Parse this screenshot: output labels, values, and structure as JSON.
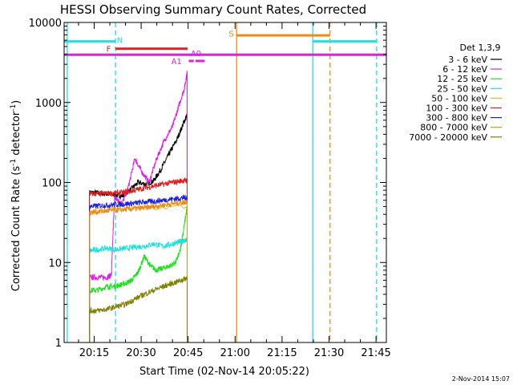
{
  "chart_data": {
    "type": "line",
    "title": "HESSI Observing Summary Count Rates, Corrected",
    "xlabel": "Start Time (02-Nov-14 20:05:22)",
    "ylabel_main": "Corrected Count Rate (s",
    "ylabel_sup1": "-1",
    "ylabel_mid": " detector",
    "ylabel_sup2": "-1",
    "ylabel_end": ")",
    "x_unit": "minutes of day (UT)",
    "xlim": [
      1205.4,
      1308.3
    ],
    "ylim": [
      1,
      10000
    ],
    "yscale": "log",
    "x_ticks": [
      {
        "v": 1215,
        "label": "20:15"
      },
      {
        "v": 1230,
        "label": "20:30"
      },
      {
        "v": 1245,
        "label": "20:45"
      },
      {
        "v": 1260,
        "label": "21:00"
      },
      {
        "v": 1275,
        "label": "21:15"
      },
      {
        "v": 1290,
        "label": "21:30"
      },
      {
        "v": 1305,
        "label": "21:45"
      }
    ],
    "y_ticks": [
      {
        "v": 1,
        "label": "1"
      },
      {
        "v": 10,
        "label": "10"
      },
      {
        "v": 100,
        "label": "100"
      },
      {
        "v": 1000,
        "label": "1000"
      },
      {
        "v": 10000,
        "label": "10000"
      }
    ],
    "legend_title": "Det 1,3,9",
    "legend_position": "right",
    "series": [
      {
        "name": "3 - 6 keV",
        "color": "#000000",
        "x": [
          1213.5,
          1216,
          1219,
          1221.5,
          1224,
          1226.5,
          1229,
          1231.5,
          1234,
          1236.5,
          1239,
          1241.5,
          1243.5,
          1244.7
        ],
        "y": [
          75,
          74,
          72,
          70,
          68,
          80,
          100,
          95,
          105,
          150,
          230,
          350,
          550,
          700
        ]
      },
      {
        "name": "6 - 12 keV",
        "color": "#e020e0",
        "x": [
          1213.5,
          1216,
          1219,
          1220.5,
          1221.5,
          1222.5,
          1224,
          1226,
          1228,
          1230,
          1232.5,
          1235,
          1237.5,
          1240,
          1242,
          1243.8,
          1244.7
        ],
        "y": [
          6.5,
          6.5,
          6.5,
          7,
          65,
          60,
          55,
          90,
          200,
          140,
          100,
          200,
          340,
          500,
          900,
          1500,
          2400
        ]
      },
      {
        "name": "12 - 25 keV",
        "color": "#20e020",
        "x": [
          1213.5,
          1216,
          1219,
          1221,
          1223,
          1225,
          1227,
          1229,
          1231,
          1233,
          1235,
          1237,
          1239,
          1241,
          1242.5,
          1243.5,
          1244.7
        ],
        "y": [
          4.5,
          4.5,
          5,
          5,
          5.2,
          5.5,
          6,
          7.5,
          12,
          9,
          8,
          8.5,
          9,
          10,
          14,
          25,
          50
        ]
      },
      {
        "name": "25 - 50 keV",
        "color": "#20e0e0",
        "x": [
          1213.5,
          1216,
          1219,
          1222,
          1225,
          1228,
          1231,
          1234,
          1237,
          1240,
          1242,
          1243.5,
          1244.7
        ],
        "y": [
          14,
          14.5,
          15,
          14.5,
          15,
          15.5,
          16,
          17,
          16,
          17,
          18,
          18.5,
          19
        ]
      },
      {
        "name": "50 - 100 keV",
        "color": "#e0c020",
        "x": [
          1213.5,
          1244.7
        ],
        "y": [
          45,
          50
        ]
      },
      {
        "name": "100 - 300 keV",
        "color": "#e02020",
        "x": [
          1213.5,
          1216,
          1219,
          1222,
          1225,
          1228,
          1231,
          1234,
          1237,
          1240,
          1243,
          1244.7
        ],
        "y": [
          72,
          72,
          73,
          74,
          75,
          80,
          85,
          90,
          95,
          100,
          105,
          106
        ]
      },
      {
        "name": "300 - 800 keV",
        "color": "#2020e0",
        "x": [
          1213.5,
          1216,
          1219,
          1222,
          1225,
          1228,
          1231,
          1234,
          1237,
          1240,
          1243,
          1244.7
        ],
        "y": [
          50,
          51,
          52,
          53,
          54,
          55,
          57,
          58,
          60,
          62,
          64,
          65
        ]
      },
      {
        "name": "800 - 7000 keV",
        "color": "#f08a10",
        "x": [
          1213.5,
          1216,
          1219,
          1222,
          1225,
          1228,
          1231,
          1234,
          1237,
          1240,
          1243,
          1244.7
        ],
        "y": [
          42,
          43,
          44,
          45,
          46,
          47,
          48,
          50,
          52,
          54,
          56,
          58
        ]
      },
      {
        "name": "7000 - 20000 keV",
        "color": "#808000",
        "x": [
          1213.5,
          1216,
          1219,
          1222,
          1225,
          1228,
          1231,
          1234,
          1237,
          1240,
          1243,
          1244.7
        ],
        "y": [
          2.5,
          2.5,
          2.6,
          2.8,
          3,
          3.5,
          4,
          4.5,
          5,
          5.5,
          6,
          6.5
        ]
      }
    ],
    "state_bars": [
      {
        "label": "N",
        "color": "#20e0e0",
        "x0": 1205.4,
        "x1": 1221.8,
        "y": 5800,
        "label_x": 1223.2,
        "label_y": 6100
      },
      {
        "label": "",
        "color": "#20e0e0",
        "x0": 1284.8,
        "x1": 1305.2,
        "y": 5800
      },
      {
        "label": "F",
        "color": "#e02020",
        "x0": 1221.8,
        "x1": 1244.8,
        "y": 4700,
        "label_x": 1219.6,
        "label_y": 4700
      },
      {
        "label": "S",
        "color": "#f08a10",
        "x0": 1260.5,
        "x1": 1290.3,
        "y": 6900,
        "label_x": 1258.8,
        "label_y": 7300
      },
      {
        "label": "",
        "color": "#e020e0",
        "x0": 1205.4,
        "x1": 1308.3,
        "y": 3950
      },
      {
        "label": "A1",
        "color": "#e020e0",
        "x0": 1245.2,
        "x1": 1246.8,
        "y": 3300,
        "label_x": 1241.3,
        "label_y": 3300
      },
      {
        "label": "A0",
        "color": "#e020e0",
        "x0": 1247.3,
        "x1": 1250.3,
        "y": 3300,
        "label_x": 1247.5,
        "label_y": 4150
      }
    ],
    "vertical_markers": [
      {
        "color": "#20e0e0",
        "x": 1206.4,
        "style": "solid"
      },
      {
        "color": "#20e0e0",
        "x": 1221.8,
        "style": "dashed"
      },
      {
        "color": "#f08a10",
        "x": 1260.5,
        "style": "solid"
      },
      {
        "color": "#20e0e0",
        "x": 1284.8,
        "style": "solid"
      },
      {
        "color": "#f08a10",
        "x": 1290.3,
        "style": "dashed"
      },
      {
        "color": "#20e0e0",
        "x": 1305.2,
        "style": "dashed"
      }
    ],
    "footer_date": "2-Nov-2014 15:07"
  }
}
